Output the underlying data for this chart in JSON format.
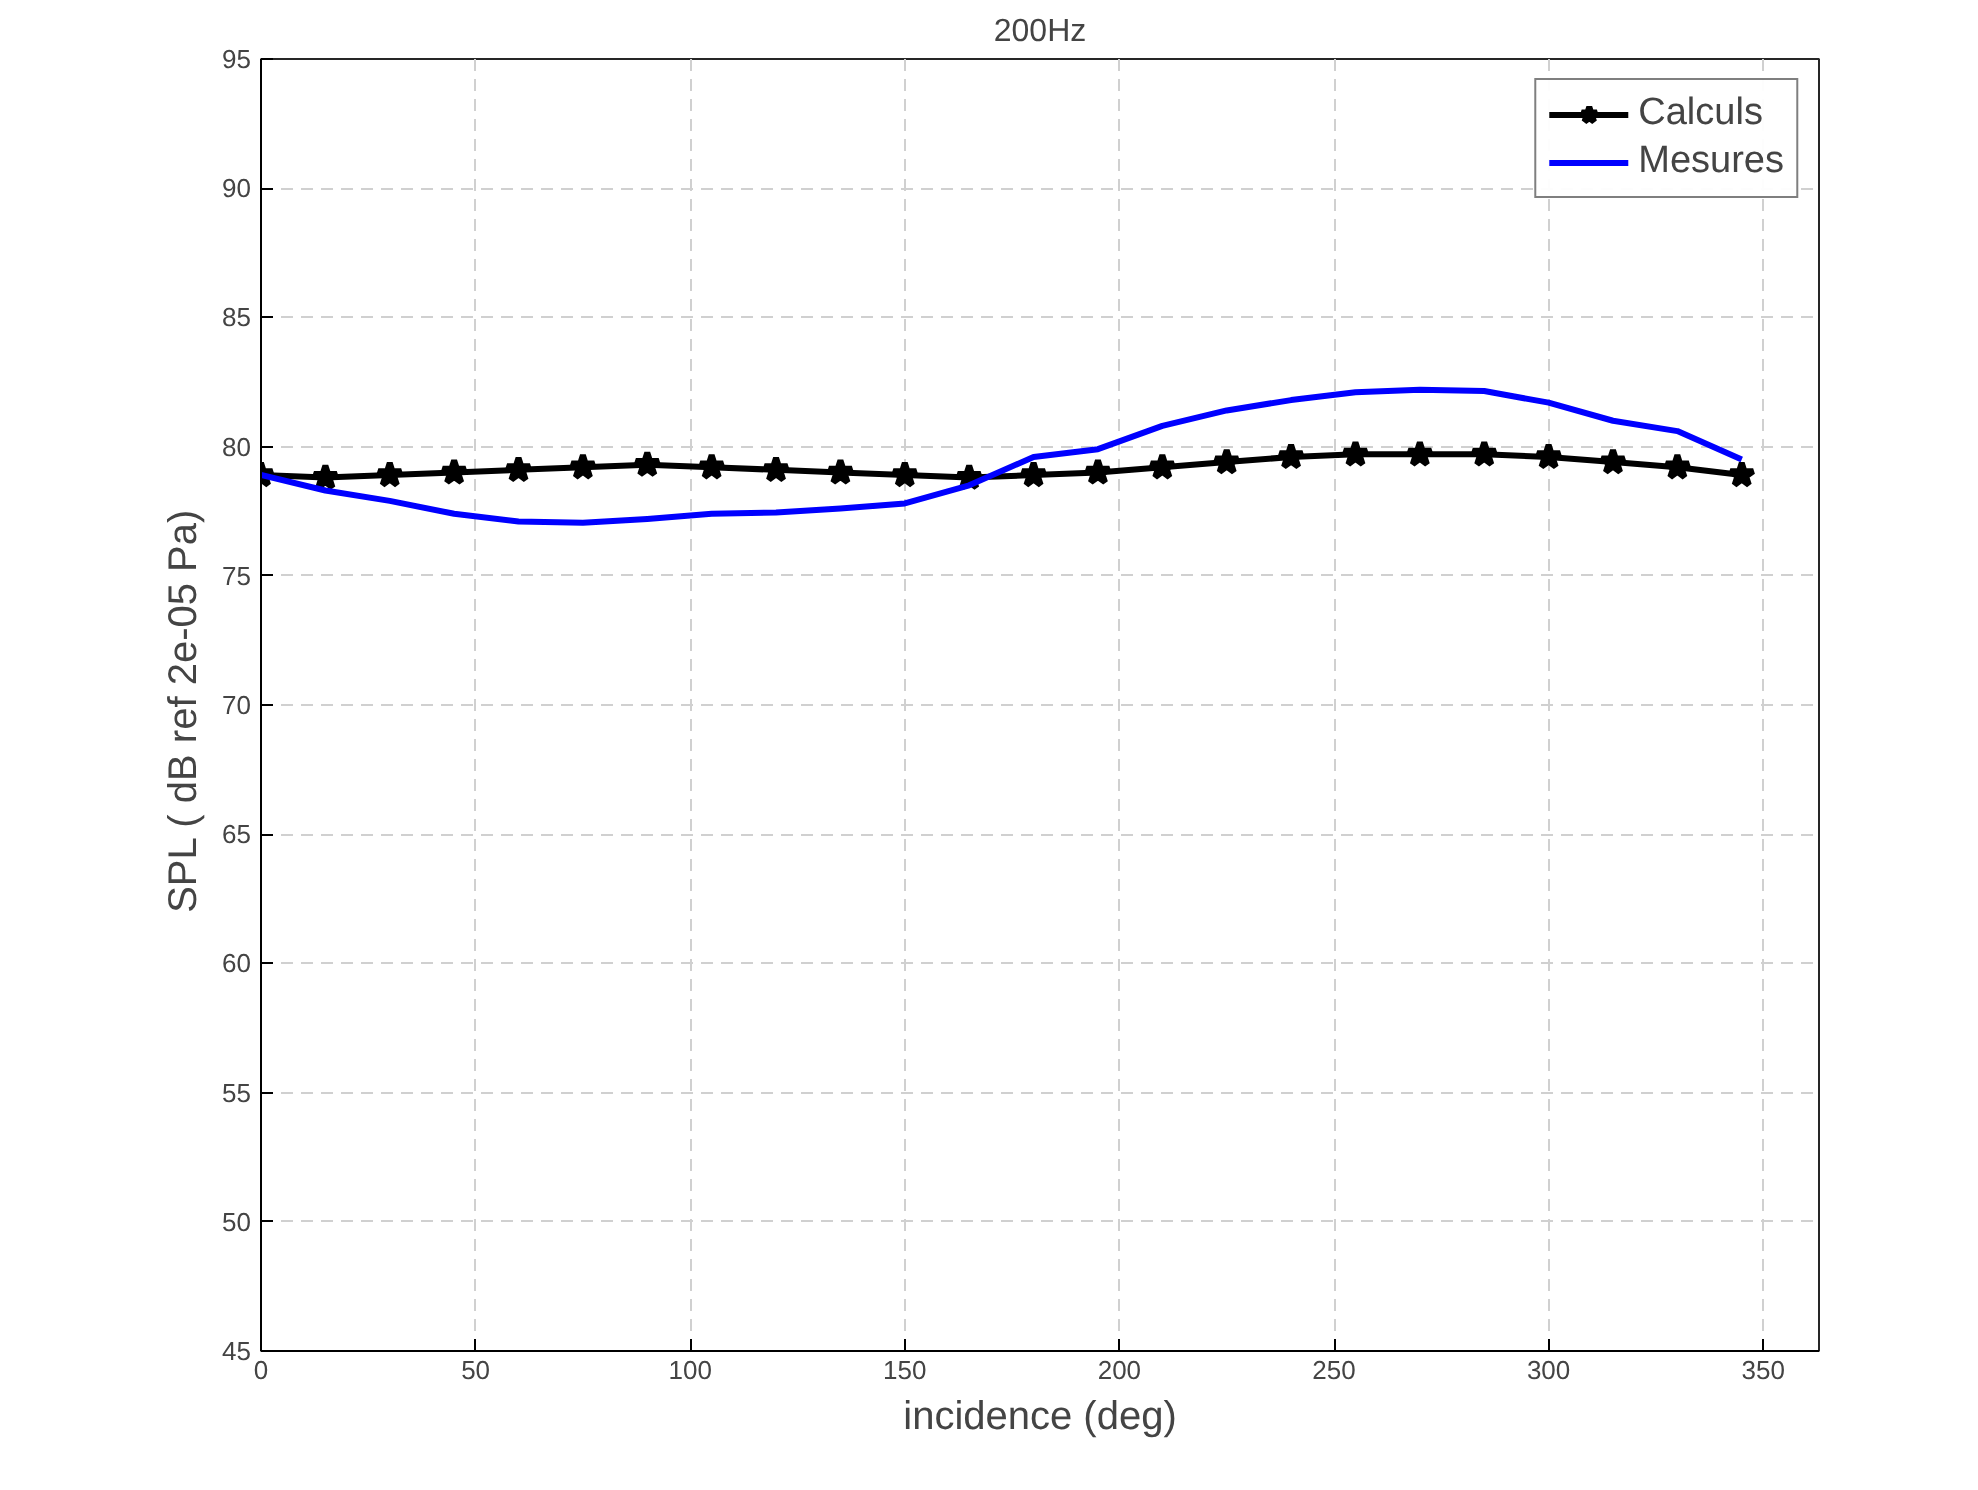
{
  "chart_data": {
    "type": "line",
    "title": "200Hz",
    "xlabel": "incidence (deg)",
    "ylabel": "SPL ( dB  ref 2e-05 Pa)",
    "x": [
      0,
      15,
      30,
      45,
      60,
      75,
      90,
      105,
      120,
      135,
      150,
      165,
      180,
      195,
      210,
      225,
      240,
      255,
      270,
      285,
      300,
      315,
      330,
      345
    ],
    "series": [
      {
        "name": "Calculs",
        "color": "#000000",
        "marker": "star",
        "values": [
          78.9,
          78.8,
          78.9,
          79.0,
          79.1,
          79.2,
          79.3,
          79.2,
          79.1,
          79.0,
          78.9,
          78.8,
          78.9,
          79.0,
          79.2,
          79.4,
          79.6,
          79.7,
          79.7,
          79.7,
          79.6,
          79.4,
          79.2,
          78.9
        ]
      },
      {
        "name": "Mesures",
        "color": "#0000ff",
        "marker": "none",
        "values": [
          78.9,
          78.3,
          77.9,
          77.4,
          77.1,
          77.05,
          77.2,
          77.4,
          77.45,
          77.6,
          77.8,
          78.5,
          79.6,
          79.9,
          80.8,
          81.4,
          81.8,
          82.1,
          82.2,
          82.15,
          81.7,
          81.0,
          80.6,
          79.5
        ]
      }
    ],
    "xlim": [
      0,
      363
    ],
    "ylim": [
      45,
      95
    ],
    "xticks": [
      0,
      50,
      100,
      150,
      200,
      250,
      300,
      350
    ],
    "yticks": [
      45,
      50,
      55,
      60,
      65,
      70,
      75,
      80,
      85,
      90,
      95
    ],
    "grid": true,
    "legend": "top right"
  }
}
